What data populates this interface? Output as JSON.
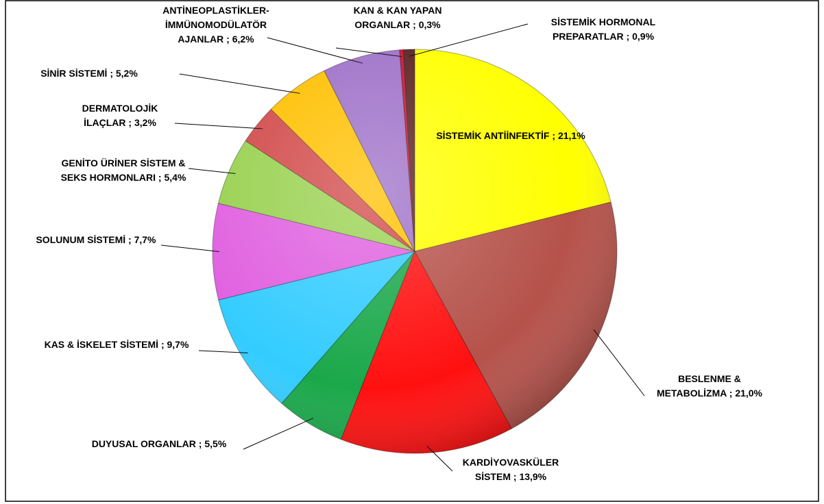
{
  "chart_data": {
    "type": "pie",
    "categories": [
      "SİSTEMİK ANTİİNFEKTİF",
      "BESLENME & METABOLİZMA",
      "KARDİYOVASKÜLER SİSTEM",
      "DUYUSAL ORGANLAR",
      "KAS & İSKELET SİSTEMİ",
      "SOLUNUM SİSTEMİ",
      "GENİTO ÜRİNER SİSTEM & SEKS HORMONLARI",
      "DERMATOLOJİK İLAÇLAR",
      "SİNİR SİSTEMİ",
      "ANTİNEOPLASTİKLER-İMMÜNOMODÜLATÖR AJANLAR",
      "KAN & KAN YAPAN ORGANLAR",
      "SİSTEMİK HORMONAL PREPARATLAR"
    ],
    "values": [
      21.1,
      21.0,
      13.9,
      5.5,
      9.7,
      7.7,
      5.4,
      3.2,
      5.2,
      6.2,
      0.3,
      0.9
    ],
    "value_labels": [
      "21,1%",
      "21,0%",
      "13,9%",
      "5,5%",
      "9,7%",
      "7,7%",
      "5,4%",
      "3,2%",
      "5,2%",
      "6,2%",
      "0,3%",
      "0,9%"
    ],
    "separator": ";",
    "colors": [
      "#ffff00",
      "#b5524a",
      "#ff1010",
      "#1aa84a",
      "#33ccff",
      "#e060e0",
      "#99d150",
      "#d24a4a",
      "#ffc000",
      "#9e70c8",
      "#c8102e",
      "#5a2020"
    ]
  }
}
